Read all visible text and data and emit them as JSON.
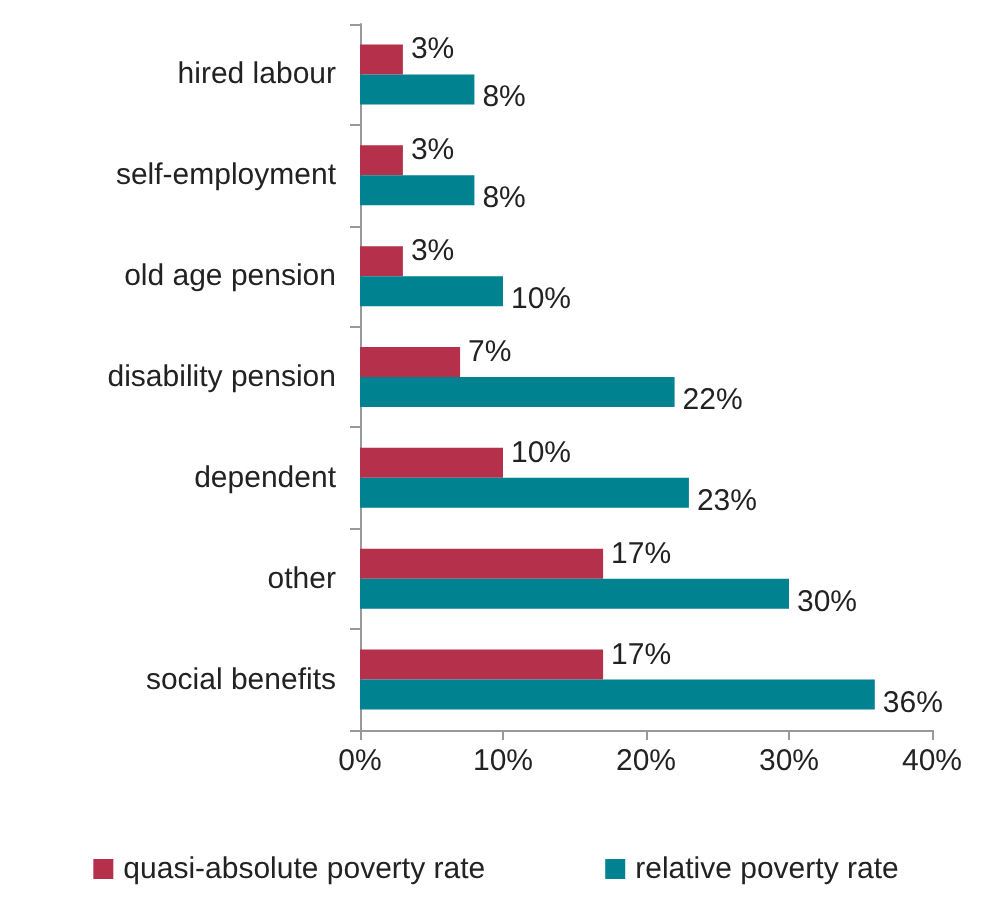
{
  "chart_data": {
    "type": "bar",
    "orientation": "horizontal",
    "categories": [
      "hired labour",
      "self-employment",
      "old age pension",
      "disability pension",
      "dependent",
      "other",
      "social benefits"
    ],
    "series": [
      {
        "name": "quasi-absolute poverty rate",
        "color": "#b5304a",
        "values": [
          3,
          3,
          3,
          7,
          10,
          17,
          17
        ],
        "value_labels": [
          "3%",
          "3%",
          "3%",
          "7%",
          "10%",
          "17%",
          "17%"
        ]
      },
      {
        "name": "relative poverty rate",
        "color": "#008290",
        "values": [
          8,
          8,
          10,
          22,
          23,
          30,
          36
        ],
        "value_labels": [
          "8%",
          "8%",
          "10%",
          "22%",
          "23%",
          "30%",
          "36%"
        ]
      }
    ],
    "xlim": [
      0,
      40
    ],
    "xticks": [
      {
        "value": 0,
        "label": "0%"
      },
      {
        "value": 10,
        "label": "10%"
      },
      {
        "value": 20,
        "label": "20%"
      },
      {
        "value": 30,
        "label": "30%"
      },
      {
        "value": 40,
        "label": "40%"
      }
    ],
    "grid": false,
    "legend": "bottom"
  }
}
